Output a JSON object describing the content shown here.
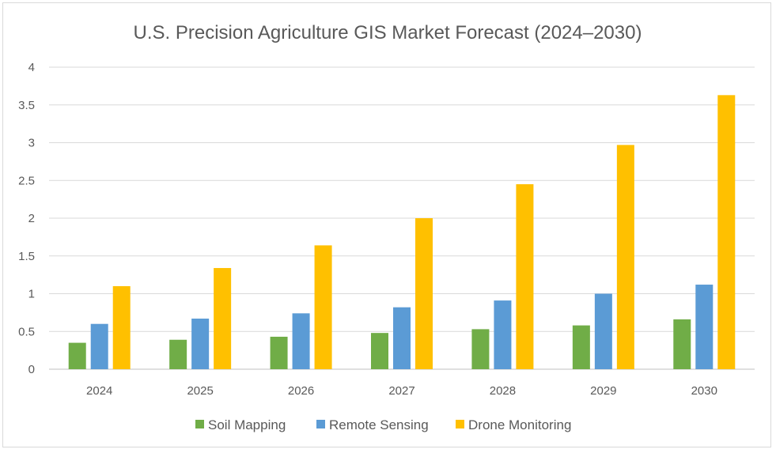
{
  "chart_data": {
    "type": "bar",
    "title": "U.S. Precision Agriculture GIS Market Forecast (2024–2030)",
    "xlabel": "",
    "ylabel": "",
    "categories": [
      "2024",
      "2025",
      "2026",
      "2027",
      "2028",
      "2029",
      "2030"
    ],
    "series": [
      {
        "name": "Soil Mapping",
        "color": "#70ad47",
        "values": [
          0.35,
          0.39,
          0.43,
          0.48,
          0.53,
          0.58,
          0.66
        ]
      },
      {
        "name": "Remote Sensing",
        "color": "#5b9bd5",
        "values": [
          0.6,
          0.67,
          0.74,
          0.82,
          0.91,
          1.0,
          1.12
        ]
      },
      {
        "name": "Drone Monitoring",
        "color": "#ffc000",
        "values": [
          1.1,
          1.34,
          1.64,
          2.0,
          2.45,
          2.97,
          3.63
        ]
      }
    ],
    "ylim": [
      0,
      4
    ],
    "yticks": [
      "0",
      "0.5",
      "1",
      "1.5",
      "2",
      "2.5",
      "3",
      "3.5",
      "4"
    ],
    "ytick_values": [
      0,
      0.5,
      1,
      1.5,
      2,
      2.5,
      3,
      3.5,
      4
    ],
    "grid": true,
    "legend_position": "bottom"
  }
}
